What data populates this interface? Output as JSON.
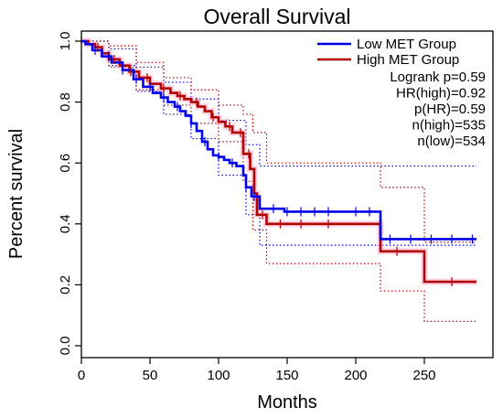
{
  "chart_data": {
    "type": "line",
    "subtype": "kaplan-meier",
    "title": "Overall Survival",
    "xlabel": "Months",
    "ylabel": "Percent survival",
    "xlim": [
      0,
      290
    ],
    "ylim": [
      0,
      1.05
    ],
    "xticks": [
      "0",
      "50",
      "100",
      "150",
      "200",
      "250"
    ],
    "yticks": [
      "0.0",
      "0.2",
      "0.4",
      "0.6",
      "0.8",
      "1.0"
    ],
    "legend_position": "top-right",
    "legend": [
      "Low MET Group",
      "High MET Group"
    ],
    "stats": [
      "Logrank p=0.59",
      "HR(high)=0.92",
      "p(HR)=0.59",
      "n(high)=535",
      "n(low)=534"
    ],
    "series": [
      {
        "name": "Low MET Group",
        "color": "#0000ee",
        "x": [
          0,
          3,
          8,
          15,
          22,
          30,
          38,
          45,
          52,
          58,
          63,
          68,
          72,
          76,
          80,
          84,
          88,
          92,
          96,
          100,
          104,
          108,
          113,
          118,
          120,
          124,
          130,
          148,
          218,
          288
        ],
        "y": [
          1.0,
          0.99,
          0.97,
          0.95,
          0.93,
          0.905,
          0.875,
          0.85,
          0.83,
          0.815,
          0.8,
          0.785,
          0.77,
          0.755,
          0.73,
          0.705,
          0.67,
          0.645,
          0.625,
          0.62,
          0.61,
          0.6,
          0.59,
          0.56,
          0.52,
          0.49,
          0.45,
          0.44,
          0.35,
          0.35
        ],
        "censor_x": [
          10,
          20,
          30,
          40,
          50,
          60,
          70,
          80,
          90,
          100,
          110,
          120,
          126,
          140,
          150,
          160,
          170,
          180,
          200,
          210,
          225,
          240,
          255,
          270,
          285
        ],
        "ci_upper": {
          "x": [
            0,
            20,
            40,
            60,
            80,
            100,
            120,
            130,
            150,
            218,
            288
          ],
          "y": [
            1.0,
            0.975,
            0.915,
            0.865,
            0.81,
            0.74,
            0.66,
            0.59,
            0.59,
            0.59,
            0.59
          ]
        },
        "ci_lower": {
          "x": [
            0,
            20,
            40,
            60,
            80,
            100,
            120,
            130,
            150,
            218,
            288
          ],
          "y": [
            1.0,
            0.92,
            0.835,
            0.76,
            0.68,
            0.56,
            0.43,
            0.33,
            0.33,
            0.33,
            0.33
          ]
        }
      },
      {
        "name": "High MET Group",
        "color": "#b20000",
        "x": [
          0,
          5,
          10,
          15,
          20,
          28,
          35,
          42,
          50,
          58,
          65,
          70,
          75,
          80,
          85,
          90,
          95,
          100,
          105,
          110,
          115,
          118,
          123,
          126,
          128,
          135,
          218,
          250,
          288
        ],
        "y": [
          1.0,
          0.99,
          0.98,
          0.96,
          0.94,
          0.92,
          0.9,
          0.88,
          0.86,
          0.845,
          0.83,
          0.82,
          0.81,
          0.8,
          0.785,
          0.77,
          0.75,
          0.735,
          0.72,
          0.7,
          0.7,
          0.63,
          0.58,
          0.5,
          0.43,
          0.4,
          0.31,
          0.21,
          0.21
        ],
        "censor_x": [
          12,
          24,
          36,
          48,
          60,
          72,
          84,
          96,
          108,
          116,
          122,
          132,
          145,
          160,
          180,
          230,
          270
        ],
        "ci_upper": {
          "x": [
            0,
            20,
            40,
            60,
            80,
            100,
            118,
            125,
            135,
            218,
            250,
            288
          ],
          "y": [
            1.0,
            0.985,
            0.93,
            0.88,
            0.84,
            0.79,
            0.76,
            0.7,
            0.6,
            0.52,
            0.34,
            0.34
          ]
        },
        "ci_lower": {
          "x": [
            0,
            20,
            40,
            60,
            80,
            100,
            118,
            125,
            135,
            218,
            250,
            288
          ],
          "y": [
            1.0,
            0.915,
            0.84,
            0.79,
            0.73,
            0.67,
            0.54,
            0.38,
            0.27,
            0.18,
            0.08,
            0.08
          ]
        }
      }
    ]
  }
}
